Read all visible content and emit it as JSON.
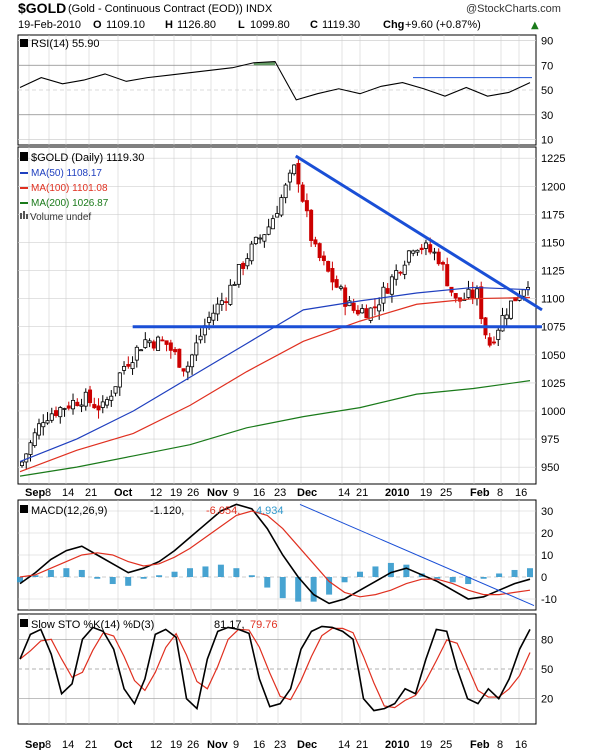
{
  "header": {
    "symbol": "$GOLD",
    "name": "(Gold - Continuous Contract (EOD)) INDX",
    "watermark": "@StockCharts.com",
    "date": "19-Feb-2010",
    "open_label": "O",
    "open": "1109.10",
    "high_label": "H",
    "high": "1126.80",
    "low_label": "L",
    "low": "1099.80",
    "close_label": "C",
    "close": "1119.30",
    "chg_label": "Chg",
    "chg": "+9.60 (+0.87%)",
    "chg_arrow": "▲"
  },
  "colors": {
    "up": "#000000",
    "down": "#cc0000",
    "ma50": "#1f3fbf",
    "ma100": "#e03020",
    "ma200": "#1a7a1a",
    "trend": "#1a4fd6",
    "grid": "#d0d0d0",
    "macd_hist": "#3399cc",
    "rsi_fill": "#4a8a4a"
  },
  "panels": {
    "rsi": {
      "legend": "RSI(14) 55.90",
      "ticks": [
        "90",
        "70",
        "50",
        "30",
        "10"
      ]
    },
    "price": {
      "legend_main": "$GOLD (Daily) 1119.30",
      "legend_ma50": "MA(50) 1108.17",
      "legend_ma100": "MA(100) 1101.08",
      "legend_ma200": "MA(200) 1026.87",
      "legend_volume": "Volume undef",
      "ticks": [
        "1225",
        "1200",
        "1175",
        "1150",
        "1125",
        "1100",
        "1075",
        "1050",
        "1025",
        "1000",
        "975",
        "950"
      ]
    },
    "macd": {
      "legend_name": "MACD(12,26,9)",
      "legend_v1": "-1.120,",
      "legend_v2": "-6.054,",
      "legend_v3": "4.934",
      "ticks": [
        "30",
        "20",
        "10",
        "0",
        "-10"
      ]
    },
    "sto": {
      "legend_name": "Slow STO %K(14) %D(3)",
      "legend_v1": "81.17,",
      "legend_v2": "79.76",
      "ticks": [
        "80",
        "50",
        "20"
      ]
    }
  },
  "xaxis": {
    "labels": [
      "Sep",
      "8",
      "14",
      "21",
      "Oct",
      "12",
      "19",
      "26",
      "Nov",
      "9",
      "16",
      "23",
      "Dec",
      "14",
      "21",
      "2010",
      "19",
      "25",
      "Feb",
      "8",
      "16"
    ]
  },
  "chart_data": {
    "type": "candlestick",
    "title": "$GOLD (Gold - Continuous Contract (EOD)) INDX",
    "period": "Daily",
    "x_range": [
      "2009-08-31",
      "2010-02-19"
    ],
    "y_range": [
      935,
      1235
    ],
    "ohlc_sampled": [
      {
        "d": "2009-08-31",
        "c": 951
      },
      {
        "d": "2009-09-08",
        "c": 995
      },
      {
        "d": "2009-09-14",
        "c": 1003
      },
      {
        "d": "2009-09-21",
        "c": 1012
      },
      {
        "d": "2009-09-28",
        "c": 1002
      },
      {
        "d": "2009-10-05",
        "c": 1040
      },
      {
        "d": "2009-10-12",
        "c": 1063
      },
      {
        "d": "2009-10-19",
        "c": 1061
      },
      {
        "d": "2009-10-26",
        "c": 1037
      },
      {
        "d": "2009-11-02",
        "c": 1080
      },
      {
        "d": "2009-11-09",
        "c": 1105
      },
      {
        "d": "2009-11-16",
        "c": 1140
      },
      {
        "d": "2009-11-23",
        "c": 1165
      },
      {
        "d": "2009-12-02",
        "c": 1218
      },
      {
        "d": "2009-12-08",
        "c": 1145
      },
      {
        "d": "2009-12-14",
        "c": 1118
      },
      {
        "d": "2009-12-21",
        "c": 1090
      },
      {
        "d": "2009-12-28",
        "c": 1090
      },
      {
        "d": "2010-01-04",
        "c": 1120
      },
      {
        "d": "2010-01-11",
        "c": 1150
      },
      {
        "d": "2010-01-19",
        "c": 1138
      },
      {
        "d": "2010-01-25",
        "c": 1097
      },
      {
        "d": "2010-02-01",
        "c": 1105
      },
      {
        "d": "2010-02-05",
        "c": 1058
      },
      {
        "d": "2010-02-11",
        "c": 1090
      },
      {
        "d": "2010-02-19",
        "c": 1119
      }
    ],
    "series": [
      {
        "name": "MA(50)",
        "last": 1108.17,
        "values": [
          955,
          975,
          1000,
          1030,
          1060,
          1090,
          1098,
          1105,
          1110,
          1108
        ]
      },
      {
        "name": "MA(100)",
        "last": 1101.08,
        "values": [
          946,
          965,
          980,
          1005,
          1035,
          1062,
          1080,
          1095,
          1100,
          1101
        ]
      },
      {
        "name": "MA(200)",
        "last": 1026.87,
        "values": [
          942,
          950,
          960,
          970,
          985,
          995,
          1003,
          1015,
          1020,
          1027
        ]
      }
    ],
    "trendlines": [
      {
        "from": [
          "2009-12-02",
          1227
        ],
        "to": [
          "2010-02-19",
          1090
        ]
      },
      {
        "from": [
          "2009-10-08",
          1075
        ],
        "to": [
          "2010-02-19",
          1075
        ]
      }
    ],
    "indicators": {
      "rsi": {
        "last": 55.9,
        "ylim": [
          10,
          90
        ],
        "values": [
          52,
          60,
          55,
          58,
          63,
          57,
          60,
          62,
          64,
          66,
          68,
          72,
          73,
          42,
          47,
          51,
          47,
          53,
          56,
          51,
          45,
          52,
          45,
          48,
          56
        ]
      },
      "macd": {
        "macd": -1.12,
        "signal": -6.054,
        "hist": 4.934,
        "ylim": [
          -15,
          35
        ]
      },
      "slow_sto": {
        "k": 81.17,
        "d": 79.76,
        "ylim": [
          0,
          100
        ]
      }
    }
  }
}
